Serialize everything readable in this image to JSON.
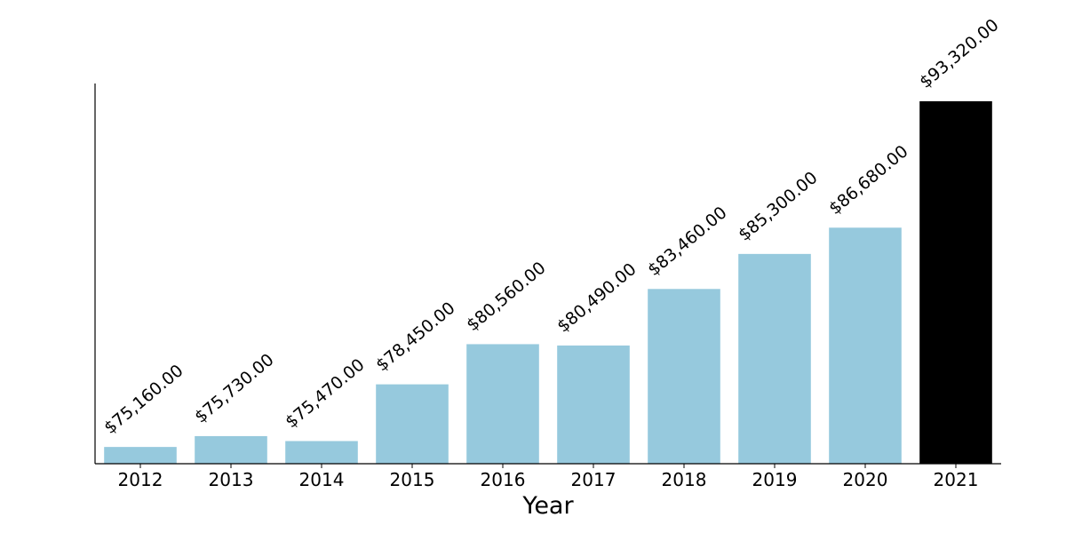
{
  "chart_data": {
    "type": "bar",
    "title": "",
    "xlabel": "Year",
    "ylabel": "",
    "categories": [
      "2012",
      "2013",
      "2014",
      "2015",
      "2016",
      "2017",
      "2018",
      "2019",
      "2020",
      "2021"
    ],
    "values": [
      75160,
      75730,
      75470,
      78450,
      80560,
      80490,
      83460,
      85300,
      86680,
      93320
    ],
    "data_labels": [
      "$75,160.00",
      "$75,730.00",
      "$75,470.00",
      "$78,450.00",
      "$80,560.00",
      "$80,490.00",
      "$83,460.00",
      "$85,300.00",
      "$86,680.00",
      "$93,320.00"
    ],
    "ylim": [
      74280,
      93320
    ],
    "y_ticks_visible": false,
    "grid": false,
    "legend": "none",
    "colors": {
      "default_bar": "#96c9dd",
      "highlight_bar": "#000000"
    },
    "highlight_index": 9
  }
}
